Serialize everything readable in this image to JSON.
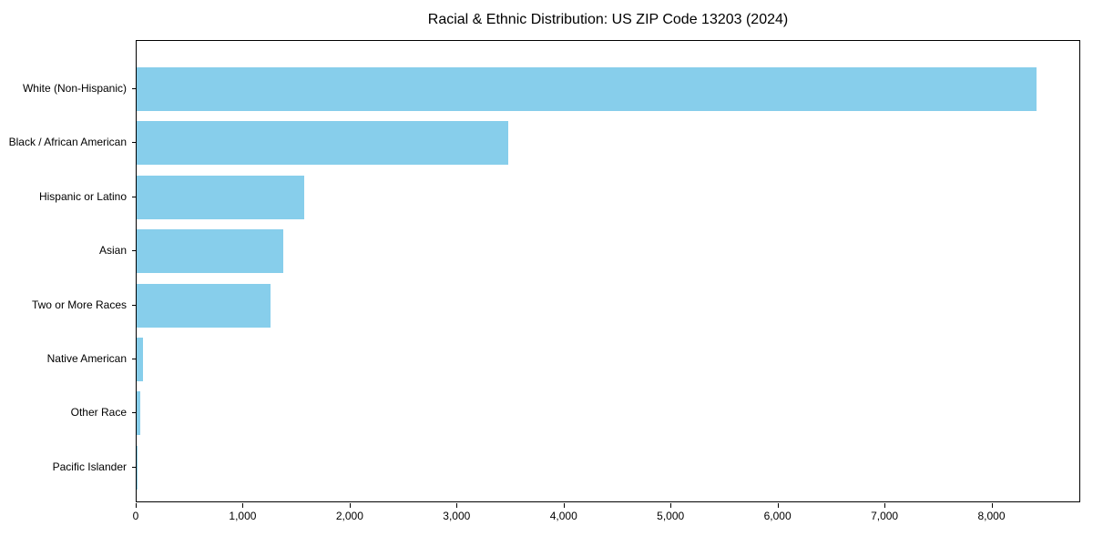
{
  "chart_data": {
    "type": "bar",
    "orientation": "horizontal",
    "title": "Racial & Ethnic Distribution: US ZIP Code 13203 (2024)",
    "categories": [
      "White (Non-Hispanic)",
      "Black / African American",
      "Hispanic or Latino",
      "Asian",
      "Two or More Races",
      "Native American",
      "Other Race",
      "Pacific Islander"
    ],
    "values": [
      8410,
      3470,
      1570,
      1370,
      1250,
      60,
      30,
      5
    ],
    "xlabel": "",
    "ylabel": "",
    "x_ticks": [
      0,
      1000,
      2000,
      3000,
      4000,
      5000,
      6000,
      7000,
      8000
    ],
    "x_tick_labels": [
      "0",
      "1,000",
      "2,000",
      "3,000",
      "4,000",
      "5,000",
      "6,000",
      "7,000",
      "8,000"
    ],
    "xlim": [
      0,
      8830
    ],
    "bar_color": "#87ceeb",
    "grid": false,
    "legend": null,
    "frame": true
  }
}
